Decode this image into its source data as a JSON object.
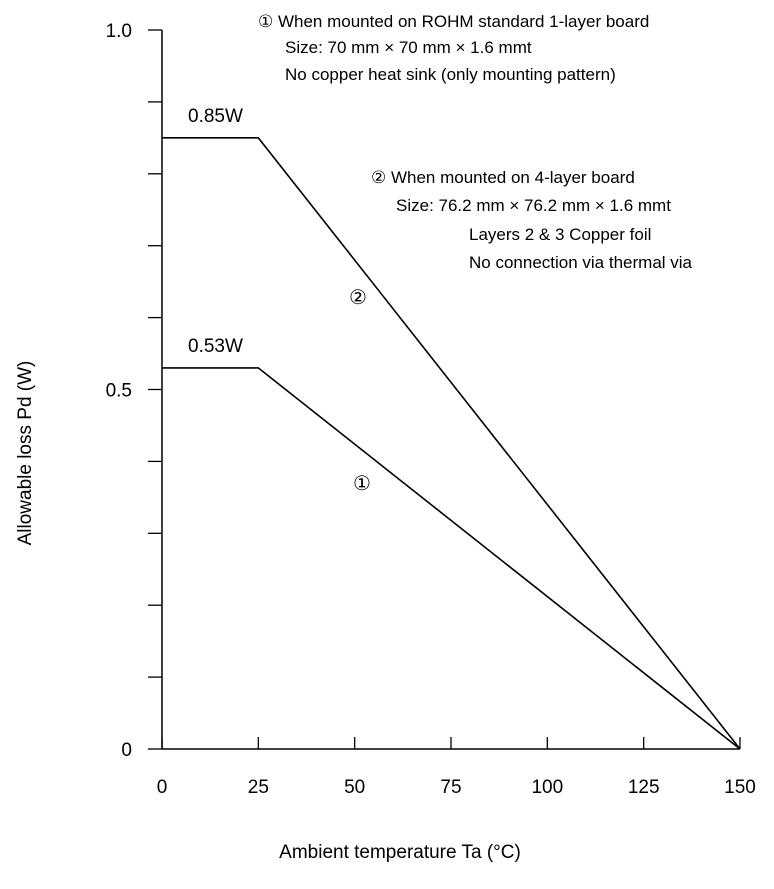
{
  "chart_data": {
    "type": "line",
    "title": "",
    "xlabel": "Ambient temperature Ta (°C)",
    "ylabel": "Allowable loss Pd (W)",
    "xlim": [
      0,
      150
    ],
    "ylim": [
      0,
      1.0
    ],
    "x_ticks": [
      0,
      25,
      50,
      75,
      100,
      125,
      150
    ],
    "x_tick_labels": [
      "0",
      "25",
      "50",
      "75",
      "100",
      "125",
      "150"
    ],
    "y_major_ticks": [
      0,
      0.5,
      1.0
    ],
    "y_tick_labels": [
      "0",
      "0.5",
      "1.0"
    ],
    "y_minor_ticks": [
      0.1,
      0.2,
      0.3,
      0.4,
      0.6,
      0.7,
      0.8,
      0.9
    ],
    "grid": false,
    "series": [
      {
        "name": "①",
        "x": [
          0,
          25,
          150
        ],
        "y": [
          0.53,
          0.53,
          0
        ],
        "level_label": "0.53W",
        "annotation": [
          "① When mounted on ROHM standard    1-layer board",
          "Size: 70 mm × 70 mm × 1.6 mmt",
          "No copper heat sink (only mounting pattern)"
        ]
      },
      {
        "name": "②",
        "x": [
          0,
          25,
          150
        ],
        "y": [
          0.85,
          0.85,
          0
        ],
        "level_label": "0.85W",
        "annotation": [
          "② When mounted on 4-layer board",
          "Size: 76.2 mm × 76.2 mm × 1.6 mmt",
          "Layers 2 & 3    Copper foil",
          "No connection via thermal via"
        ]
      }
    ]
  }
}
